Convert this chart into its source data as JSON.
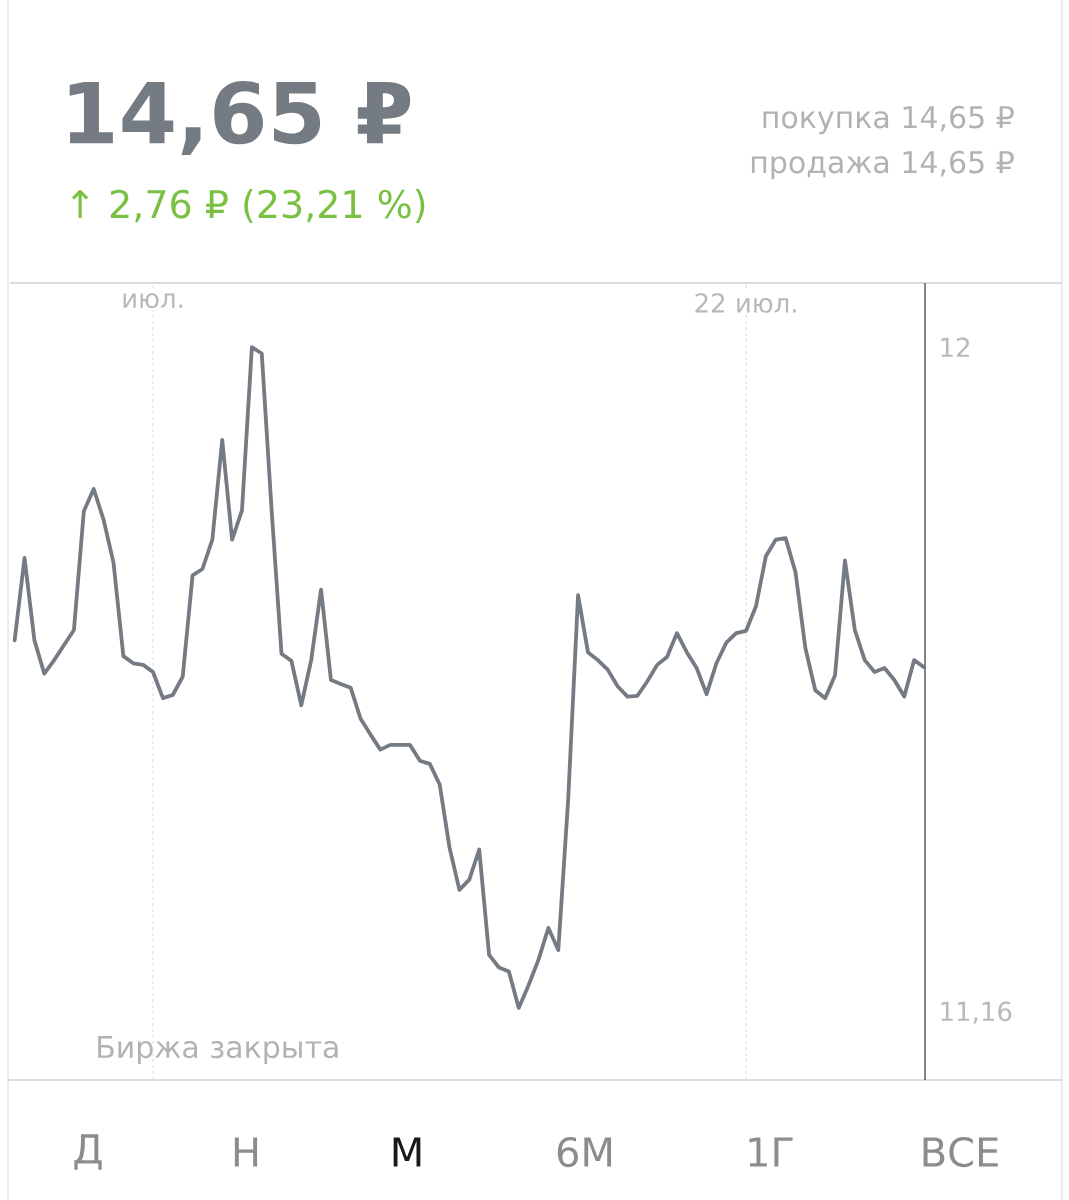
{
  "chart_data": {
    "type": "line",
    "title": "14,65 ₽",
    "subtitle": "↑ 2,76 ₽ (23,21 %)",
    "categories": [
      null,
      null,
      null,
      null,
      null,
      null,
      null,
      null,
      null,
      null,
      null,
      null,
      null,
      null,
      "июл.",
      null,
      null,
      null,
      null,
      null,
      null,
      null,
      null,
      null,
      null,
      null,
      null,
      null,
      null,
      null,
      null,
      null,
      null,
      null,
      null,
      null,
      null,
      null,
      null,
      null,
      null,
      null,
      null,
      null,
      null,
      null,
      null,
      null,
      null,
      null,
      null,
      null,
      null,
      null,
      null,
      null,
      null,
      null,
      null,
      null,
      null,
      null,
      null,
      null,
      null,
      null,
      null,
      null,
      null,
      null,
      null,
      null,
      null,
      null,
      "22 июл.",
      null,
      null,
      null,
      null,
      null,
      null,
      null,
      null,
      null,
      null,
      null,
      null,
      null,
      null,
      null,
      null,
      null,
      null
    ],
    "series": [
      {
        "color": "#747b82",
        "values": [
          11.63,
          11.734,
          11.63,
          11.588,
          11.605,
          11.624,
          11.643,
          11.793,
          11.821,
          11.782,
          11.728,
          11.61,
          11.601,
          11.599,
          11.59,
          11.557,
          11.561,
          11.584,
          11.712,
          11.72,
          11.757,
          11.883,
          11.757,
          11.794,
          12.0,
          11.992,
          11.794,
          11.613,
          11.604,
          11.548,
          11.605,
          11.694,
          11.58,
          11.575,
          11.57,
          11.531,
          11.511,
          11.492,
          11.498,
          11.498,
          11.498,
          11.478,
          11.474,
          11.448,
          11.368,
          11.315,
          11.328,
          11.366,
          11.233,
          11.217,
          11.212,
          11.166,
          11.195,
          11.227,
          11.267,
          11.239,
          11.429,
          11.687,
          11.615,
          11.605,
          11.593,
          11.572,
          11.559,
          11.56,
          11.578,
          11.599,
          11.609,
          11.639,
          11.615,
          11.595,
          11.562,
          11.601,
          11.627,
          11.639,
          11.642,
          11.673,
          11.736,
          11.757,
          11.759,
          11.716,
          11.62,
          11.567,
          11.557,
          11.586,
          11.731,
          11.643,
          11.605,
          11.59,
          11.595,
          11.58,
          11.559,
          11.605,
          11.596
        ]
      }
    ],
    "ylim": [
      11.075,
      12.081
    ],
    "yticks": [
      12,
      {
        "value": 11.16,
        "label": "11,16"
      }
    ],
    "grid": "x",
    "marker": "none",
    "line_style": "solid",
    "annotations": [
      "покупка 14,65 ₽",
      "продажа 14,65 ₽",
      "Биржа закрыта",
      "Д",
      "Н",
      "М",
      "6М",
      "1Г",
      "ВСЕ"
    ]
  }
}
